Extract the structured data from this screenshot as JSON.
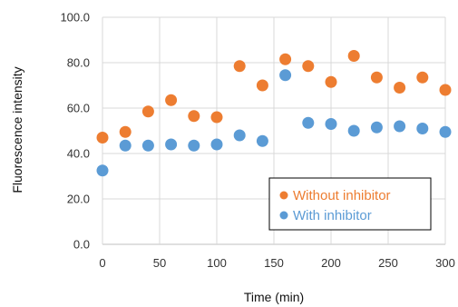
{
  "chart_data": {
    "type": "scatter",
    "xlabel": "Time (min)",
    "ylabel": "Fluorescence intensity",
    "xlim": [
      0,
      300
    ],
    "ylim": [
      0,
      100
    ],
    "x_ticks": [
      "0",
      "50",
      "100",
      "150",
      "200",
      "250",
      "300"
    ],
    "y_ticks": [
      "0.0",
      "20.0",
      "40.0",
      "60.0",
      "80.0",
      "100.0"
    ],
    "grid": true,
    "legend_position": "bottom-right",
    "series": [
      {
        "name": "Without inhibitor",
        "color": "#ED7D31",
        "x": [
          0,
          20,
          40,
          60,
          80,
          100,
          120,
          140,
          160,
          180,
          200,
          220,
          240,
          260,
          280,
          300
        ],
        "y": [
          47.0,
          49.5,
          58.5,
          63.5,
          56.5,
          56.0,
          78.5,
          70.0,
          81.5,
          78.5,
          71.5,
          83.0,
          73.5,
          69.0,
          73.5,
          68.0
        ]
      },
      {
        "name": "With inhibitor",
        "color": "#5B9BD5",
        "x": [
          0,
          20,
          40,
          60,
          80,
          100,
          120,
          140,
          160,
          180,
          200,
          220,
          240,
          260,
          280,
          300
        ],
        "y": [
          32.5,
          43.5,
          43.5,
          44.0,
          43.5,
          44.0,
          48.0,
          45.5,
          74.5,
          53.5,
          53.0,
          50.0,
          51.5,
          52.0,
          51.0,
          49.5
        ]
      }
    ]
  }
}
